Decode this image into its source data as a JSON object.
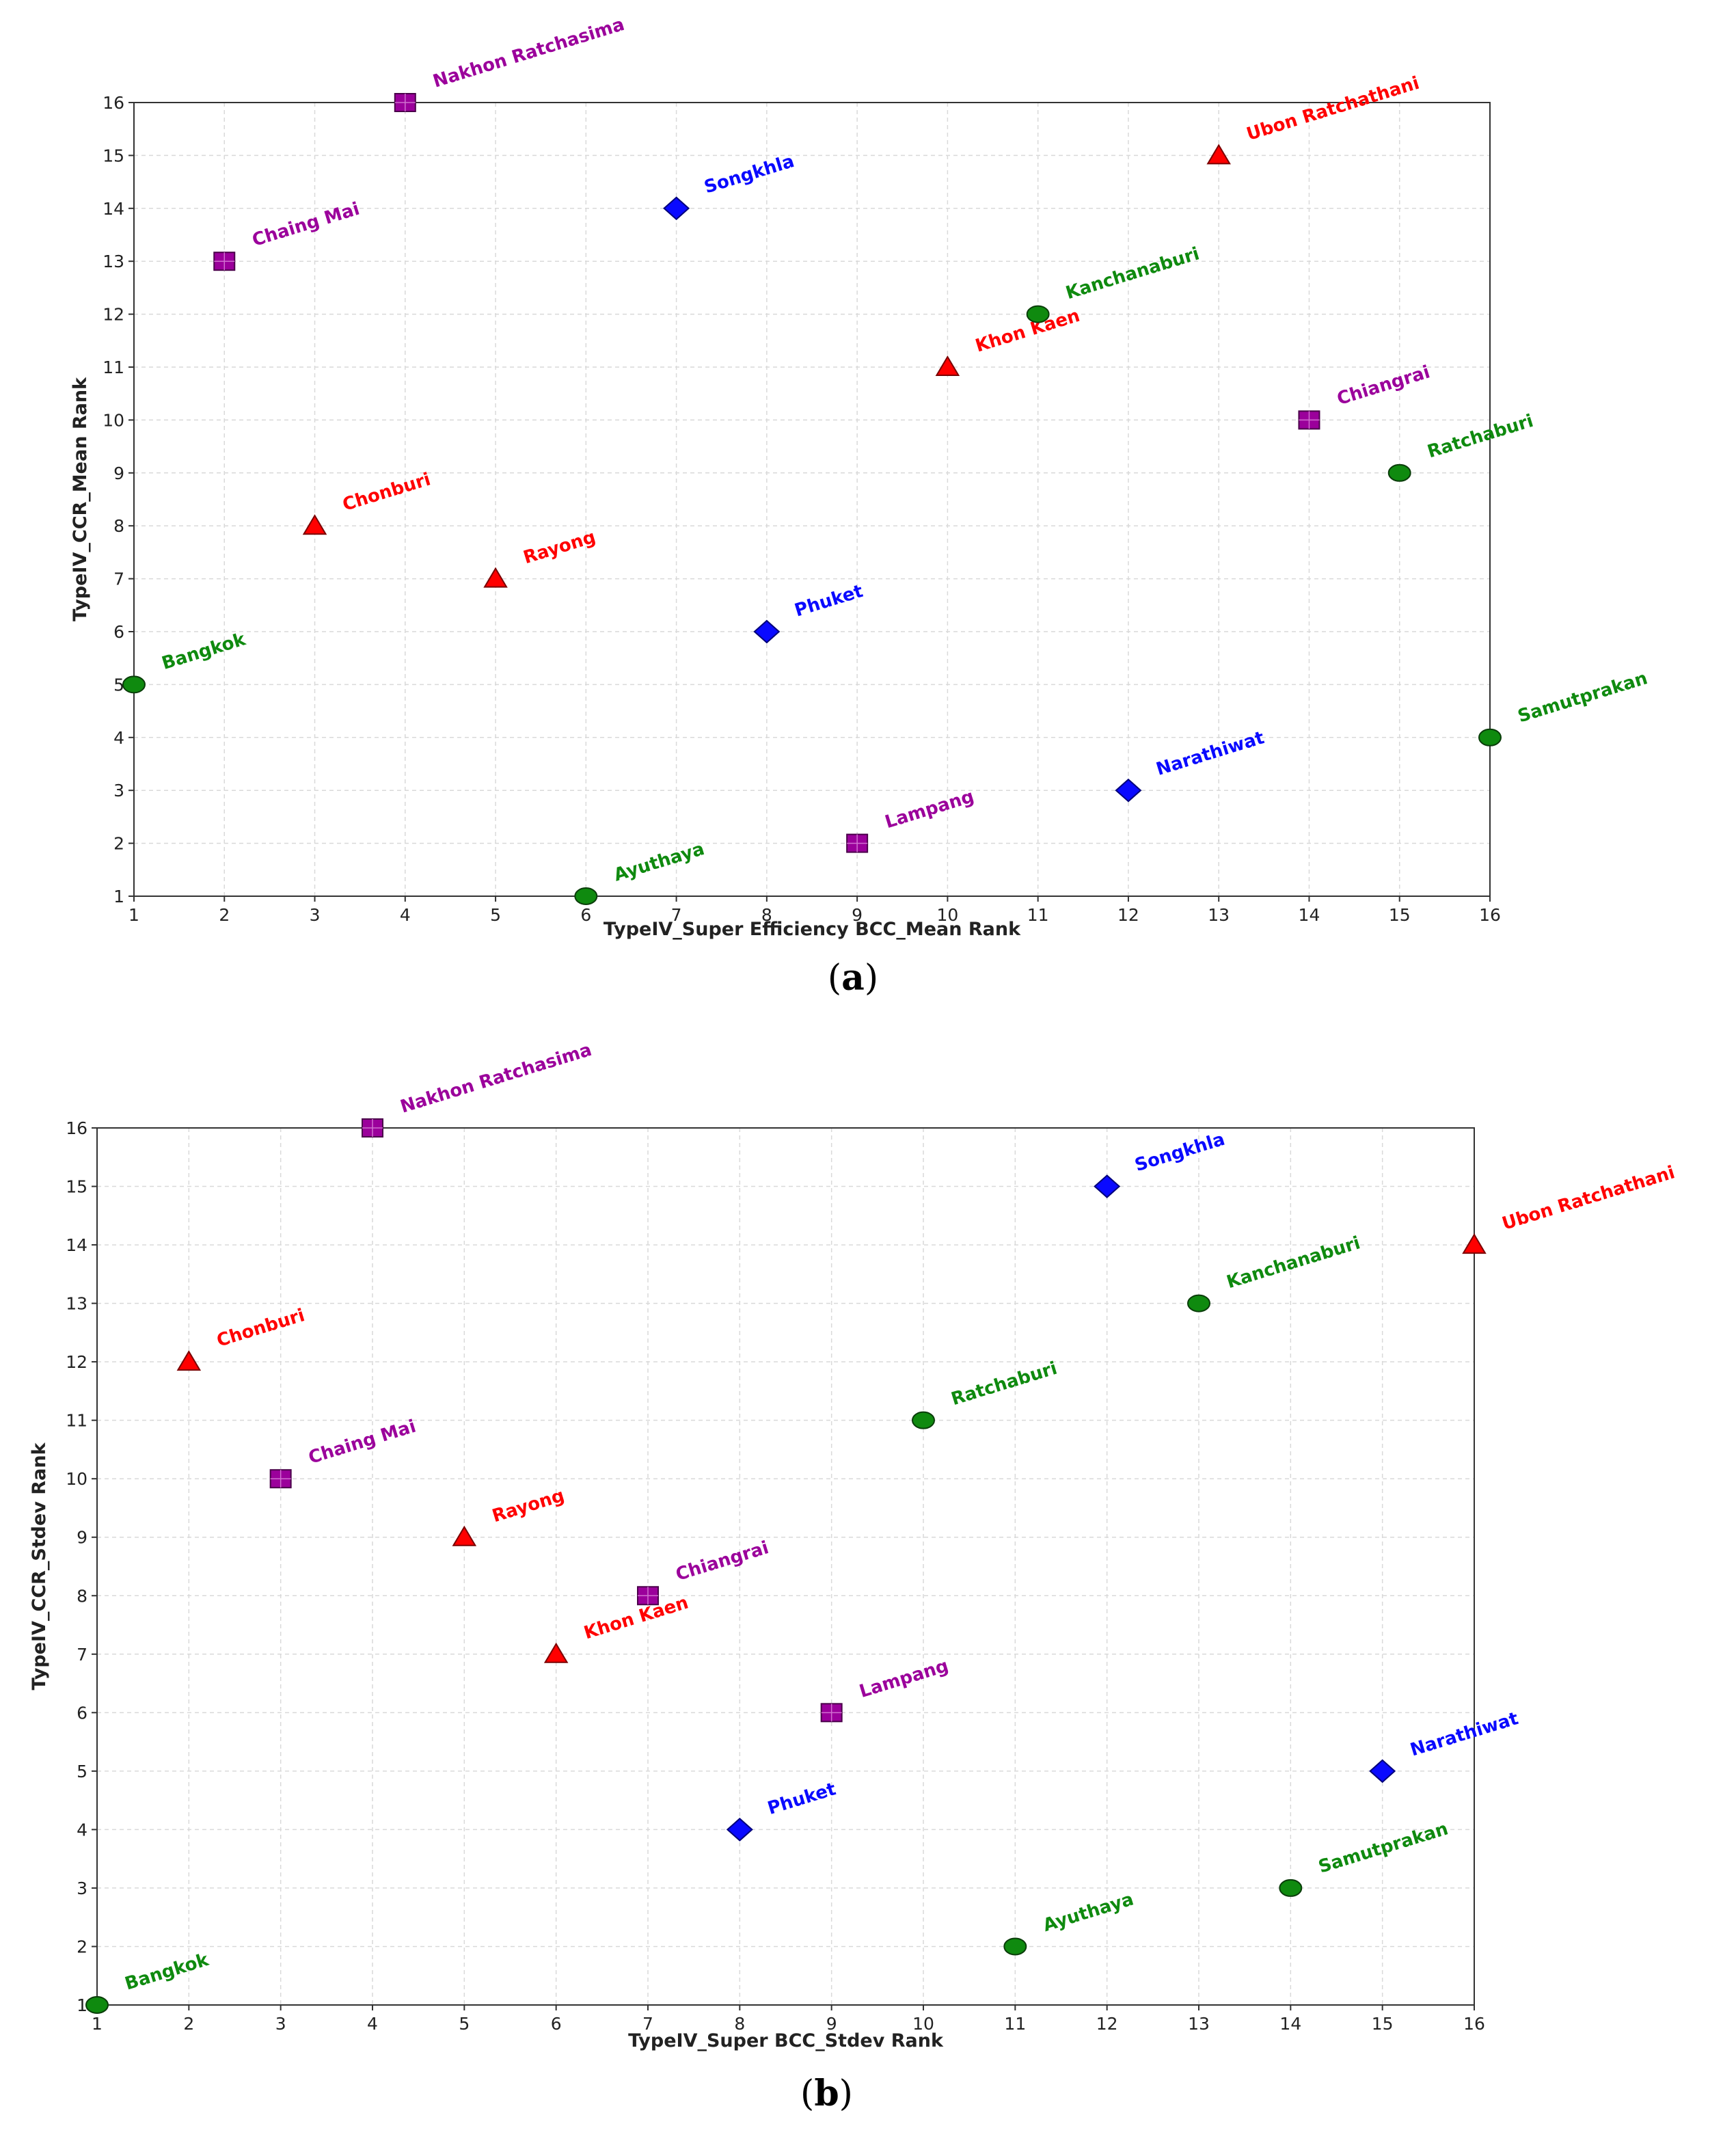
{
  "colors": {
    "red": "#ff0000",
    "purple": "#9b009b",
    "blue": "#0a0aff",
    "green": "#0f8a0f"
  },
  "chart_data": [
    {
      "type": "scatter",
      "caption_letter": "a",
      "xlabel": "TypeIV_Super Efficiency BCC_Mean Rank",
      "ylabel": "TypeIV_CCR_Mean Rank",
      "xlim": [
        1,
        16
      ],
      "ylim": [
        1,
        16
      ],
      "grid": true,
      "ticks": [
        "1",
        "2",
        "3",
        "4",
        "5",
        "6",
        "7",
        "8",
        "9",
        "10",
        "11",
        "12",
        "13",
        "14",
        "15",
        "16"
      ],
      "points": [
        {
          "label": "Bangkok",
          "x": 1,
          "y": 5,
          "marker": "circle",
          "color": "green"
        },
        {
          "label": "Chaing Mai",
          "x": 2,
          "y": 13,
          "marker": "square",
          "color": "purple"
        },
        {
          "label": "Chonburi",
          "x": 3,
          "y": 8,
          "marker": "triangle",
          "color": "red"
        },
        {
          "label": "Nakhon Ratchasima",
          "x": 4,
          "y": 16,
          "marker": "square",
          "color": "purple"
        },
        {
          "label": "Rayong",
          "x": 5,
          "y": 7,
          "marker": "triangle",
          "color": "red"
        },
        {
          "label": "Ayuthaya",
          "x": 6,
          "y": 1,
          "marker": "circle",
          "color": "green"
        },
        {
          "label": "Songkhla",
          "x": 7,
          "y": 14,
          "marker": "diamond",
          "color": "blue"
        },
        {
          "label": "Phuket",
          "x": 8,
          "y": 6,
          "marker": "diamond",
          "color": "blue"
        },
        {
          "label": "Lampang",
          "x": 9,
          "y": 2,
          "marker": "square",
          "color": "purple"
        },
        {
          "label": "Khon Kaen",
          "x": 10,
          "y": 11,
          "marker": "triangle",
          "color": "red"
        },
        {
          "label": "Kanchanaburi",
          "x": 11,
          "y": 12,
          "marker": "circle",
          "color": "green"
        },
        {
          "label": "Narathiwat",
          "x": 12,
          "y": 3,
          "marker": "diamond",
          "color": "blue"
        },
        {
          "label": "Ubon Ratchathani",
          "x": 13,
          "y": 15,
          "marker": "triangle",
          "color": "red"
        },
        {
          "label": "Chiangrai",
          "x": 14,
          "y": 10,
          "marker": "square",
          "color": "purple"
        },
        {
          "label": "Ratchaburi",
          "x": 15,
          "y": 9,
          "marker": "circle",
          "color": "green"
        },
        {
          "label": "Samutprakan",
          "x": 16,
          "y": 4,
          "marker": "circle",
          "color": "green"
        }
      ]
    },
    {
      "type": "scatter",
      "caption_letter": "b",
      "xlabel": "TypeIV_Super BCC_Stdev Rank",
      "ylabel": "TypeIV_CCR_Stdev Rank",
      "xlim": [
        1,
        16
      ],
      "ylim": [
        1,
        16
      ],
      "grid": true,
      "ticks": [
        "1",
        "2",
        "3",
        "4",
        "5",
        "6",
        "7",
        "8",
        "9",
        "10",
        "11",
        "12",
        "13",
        "14",
        "15",
        "16"
      ],
      "points": [
        {
          "label": "Bangkok",
          "x": 1,
          "y": 1,
          "marker": "circle",
          "color": "green"
        },
        {
          "label": "Chonburi",
          "x": 2,
          "y": 12,
          "marker": "triangle",
          "color": "red"
        },
        {
          "label": "Chaing Mai",
          "x": 3,
          "y": 10,
          "marker": "square",
          "color": "purple"
        },
        {
          "label": "Nakhon Ratchasima",
          "x": 4,
          "y": 16,
          "marker": "square",
          "color": "purple"
        },
        {
          "label": "Rayong",
          "x": 5,
          "y": 9,
          "marker": "triangle",
          "color": "red"
        },
        {
          "label": "Khon Kaen",
          "x": 6,
          "y": 7,
          "marker": "triangle",
          "color": "red"
        },
        {
          "label": "Chiangrai",
          "x": 7,
          "y": 8,
          "marker": "square",
          "color": "purple"
        },
        {
          "label": "Phuket",
          "x": 8,
          "y": 4,
          "marker": "diamond",
          "color": "blue"
        },
        {
          "label": "Lampang",
          "x": 9,
          "y": 6,
          "marker": "square",
          "color": "purple"
        },
        {
          "label": "Ratchaburi",
          "x": 10,
          "y": 11,
          "marker": "circle",
          "color": "green"
        },
        {
          "label": "Ayuthaya",
          "x": 11,
          "y": 2,
          "marker": "circle",
          "color": "green"
        },
        {
          "label": "Songkhla",
          "x": 12,
          "y": 15,
          "marker": "diamond",
          "color": "blue"
        },
        {
          "label": "Kanchanaburi",
          "x": 13,
          "y": 13,
          "marker": "circle",
          "color": "green"
        },
        {
          "label": "Samutprakan",
          "x": 14,
          "y": 3,
          "marker": "circle",
          "color": "green"
        },
        {
          "label": "Narathiwat",
          "x": 15,
          "y": 5,
          "marker": "diamond",
          "color": "blue"
        },
        {
          "label": "Ubon Ratchathani",
          "x": 16,
          "y": 14,
          "marker": "triangle",
          "color": "red"
        }
      ]
    }
  ]
}
